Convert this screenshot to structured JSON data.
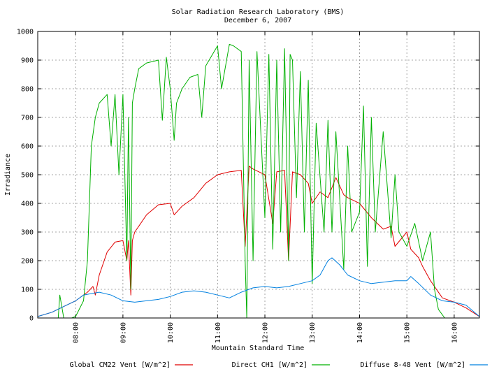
{
  "chart_data": {
    "type": "line",
    "title": "Solar Radiation Research Laboratory (BMS)",
    "subtitle": "December 6, 2007",
    "xlabel": "Mountain Standard Time",
    "ylabel": "Irradiance",
    "xlim": [
      "07:12",
      "16:32"
    ],
    "ylim": [
      0,
      1000
    ],
    "x_ticks": [
      "08:00",
      "09:00",
      "10:00",
      "11:00",
      "12:00",
      "13:00",
      "14:00",
      "15:00",
      "16:00"
    ],
    "y_ticks": [
      "0",
      "100",
      "200",
      "300",
      "400",
      "500",
      "600",
      "700",
      "800",
      "900",
      "1000"
    ],
    "grid": true,
    "legend_position": "bottom",
    "series": [
      {
        "name": "Global CM22 Vent [W/m^2]",
        "color": "#e00000",
        "x": [
          "07:12",
          "07:30",
          "07:45",
          "08:00",
          "08:15",
          "08:22",
          "08:25",
          "08:30",
          "08:40",
          "08:50",
          "09:00",
          "09:05",
          "09:07",
          "09:10",
          "09:12",
          "09:15",
          "09:20",
          "09:30",
          "09:45",
          "10:00",
          "10:05",
          "10:15",
          "10:30",
          "10:45",
          "11:00",
          "11:15",
          "11:30",
          "11:35",
          "11:40",
          "11:45",
          "12:00",
          "12:10",
          "12:15",
          "12:25",
          "12:30",
          "12:35",
          "12:45",
          "12:55",
          "13:00",
          "13:10",
          "13:20",
          "13:30",
          "13:40",
          "13:45",
          "14:00",
          "14:15",
          "14:30",
          "14:40",
          "14:45",
          "15:00",
          "15:05",
          "15:15",
          "15:20",
          "15:30",
          "15:45",
          "16:00",
          "16:15",
          "16:32"
        ],
        "values": [
          5,
          20,
          40,
          60,
          90,
          110,
          80,
          150,
          230,
          265,
          270,
          200,
          270,
          80,
          270,
          300,
          320,
          360,
          395,
          400,
          360,
          390,
          420,
          470,
          500,
          510,
          515,
          250,
          530,
          520,
          500,
          330,
          510,
          515,
          200,
          510,
          500,
          470,
          400,
          440,
          420,
          490,
          430,
          420,
          400,
          350,
          310,
          320,
          250,
          300,
          240,
          210,
          180,
          130,
          70,
          55,
          35,
          5
        ]
      },
      {
        "name": "Direct CH1 [W/m^2]",
        "color": "#00b000",
        "x": [
          "07:12",
          "07:30",
          "07:38",
          "07:40",
          "07:45",
          "07:55",
          "08:00",
          "08:10",
          "08:15",
          "08:20",
          "08:25",
          "08:30",
          "08:40",
          "08:45",
          "08:50",
          "08:55",
          "09:00",
          "09:05",
          "09:07",
          "09:10",
          "09:12",
          "09:15",
          "09:20",
          "09:30",
          "09:45",
          "09:50",
          "09:55",
          "10:00",
          "10:05",
          "10:08",
          "10:15",
          "10:25",
          "10:35",
          "10:40",
          "10:45",
          "11:00",
          "11:05",
          "11:15",
          "11:20",
          "11:30",
          "11:35",
          "11:37",
          "11:40",
          "11:45",
          "11:50",
          "12:00",
          "12:05",
          "12:10",
          "12:15",
          "12:20",
          "12:25",
          "12:30",
          "12:32",
          "12:35",
          "12:40",
          "12:45",
          "12:50",
          "12:55",
          "13:00",
          "13:05",
          "13:15",
          "13:20",
          "13:25",
          "13:30",
          "13:40",
          "13:45",
          "13:50",
          "14:00",
          "14:05",
          "14:10",
          "14:15",
          "14:20",
          "14:30",
          "14:40",
          "14:45",
          "14:50",
          "15:00",
          "15:10",
          "15:20",
          "15:30",
          "15:35",
          "15:40",
          "15:48"
        ],
        "values": [
          0,
          0,
          0,
          80,
          0,
          0,
          5,
          60,
          200,
          600,
          700,
          750,
          780,
          600,
          780,
          500,
          780,
          200,
          700,
          100,
          750,
          800,
          870,
          890,
          900,
          690,
          910,
          800,
          620,
          750,
          800,
          840,
          850,
          700,
          880,
          950,
          800,
          955,
          950,
          930,
          200,
          0,
          900,
          200,
          930,
          350,
          920,
          240,
          900,
          300,
          940,
          200,
          920,
          900,
          420,
          860,
          300,
          830,
          120,
          680,
          300,
          690,
          300,
          650,
          170,
          600,
          300,
          370,
          740,
          180,
          700,
          300,
          650,
          280,
          500,
          300,
          250,
          330,
          200,
          300,
          100,
          30,
          0
        ]
      },
      {
        "name": "Diffuse 8-48 Vent [W/m^2]",
        "color": "#0080e0",
        "x": [
          "07:12",
          "07:30",
          "07:45",
          "08:00",
          "08:10",
          "08:20",
          "08:30",
          "08:45",
          "09:00",
          "09:15",
          "09:30",
          "09:45",
          "10:00",
          "10:15",
          "10:30",
          "10:45",
          "11:00",
          "11:15",
          "11:30",
          "11:45",
          "12:00",
          "12:15",
          "12:30",
          "12:45",
          "13:00",
          "13:10",
          "13:20",
          "13:25",
          "13:35",
          "13:45",
          "14:00",
          "14:15",
          "14:30",
          "14:45",
          "15:00",
          "15:05",
          "15:15",
          "15:30",
          "15:45",
          "16:00",
          "16:15",
          "16:32"
        ],
        "values": [
          5,
          20,
          40,
          60,
          80,
          85,
          90,
          80,
          60,
          55,
          60,
          65,
          75,
          90,
          95,
          90,
          80,
          70,
          90,
          105,
          110,
          105,
          110,
          120,
          130,
          150,
          200,
          210,
          185,
          150,
          130,
          120,
          125,
          130,
          130,
          145,
          120,
          80,
          60,
          55,
          45,
          5
        ]
      }
    ]
  }
}
